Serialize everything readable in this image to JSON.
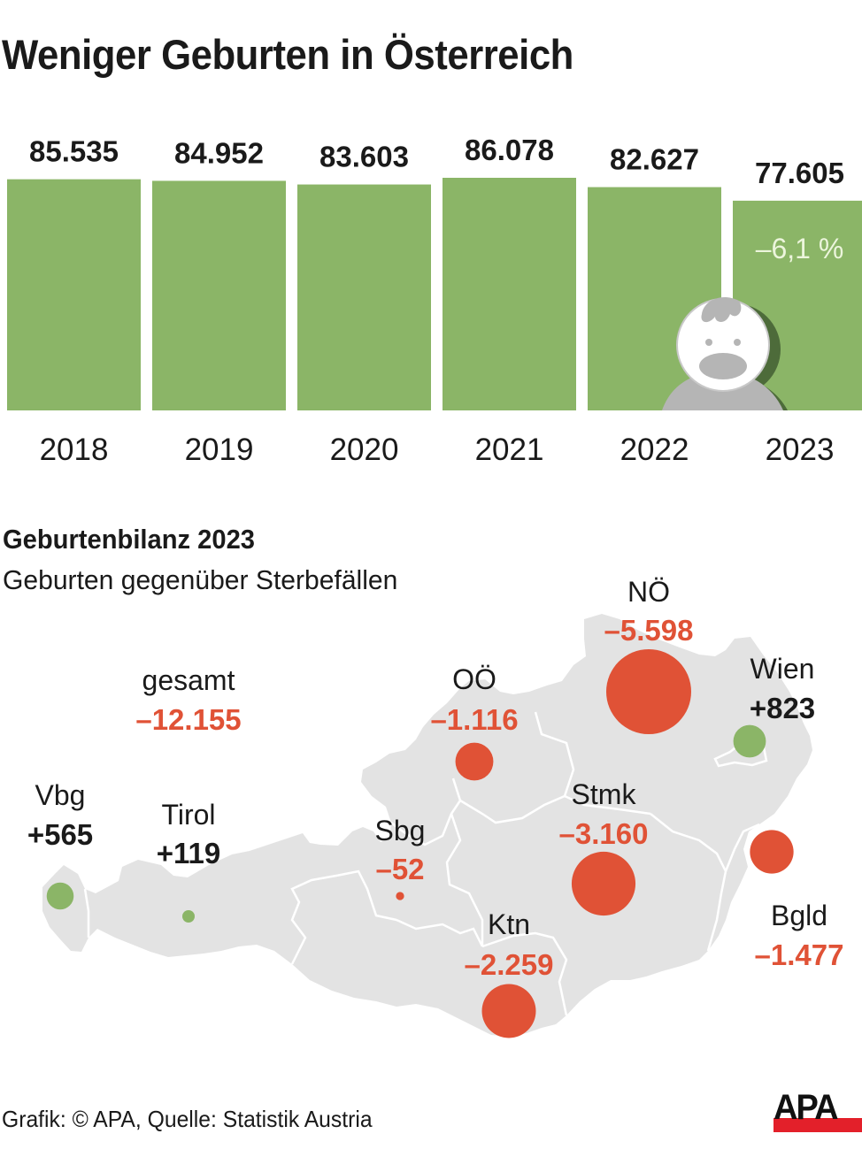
{
  "title": "Weniger Geburten in Österreich",
  "chart_data": [
    {
      "type": "bar",
      "title": "Weniger Geburten in Österreich",
      "categories": [
        "2018",
        "2019",
        "2020",
        "2021",
        "2022",
        "2023"
      ],
      "values": [
        85535,
        84952,
        83603,
        86078,
        82627,
        77605
      ],
      "value_labels": [
        "85.535",
        "84.952",
        "83.603",
        "86.078",
        "82.627",
        "77.605"
      ],
      "annotation": "–6,1 %",
      "annotation_category": "2023",
      "xlabel": "",
      "ylabel": "",
      "grid": false,
      "bar_color": "#8bb567",
      "icon": "baby-icon"
    },
    {
      "type": "map-bubble",
      "title": "Geburtenbilanz 2023",
      "subtitle": "Geburten gegenüber Sterbefällen",
      "total": {
        "label": "gesamt",
        "value": -12155,
        "display": "–12.155"
      },
      "regions": [
        {
          "name": "Vbg",
          "value": 565,
          "display": "+565"
        },
        {
          "name": "Tirol",
          "value": 119,
          "display": "+119"
        },
        {
          "name": "Sbg",
          "value": -52,
          "display": "–52"
        },
        {
          "name": "OÖ",
          "value": -1116,
          "display": "–1.116"
        },
        {
          "name": "NÖ",
          "value": -5598,
          "display": "–5.598"
        },
        {
          "name": "Wien",
          "value": 823,
          "display": "+823"
        },
        {
          "name": "Stmk",
          "value": -3160,
          "display": "–3.160"
        },
        {
          "name": "Ktn",
          "value": -2259,
          "display": "–2.259"
        },
        {
          "name": "Bgld",
          "value": -1477,
          "display": "–1.477"
        }
      ],
      "positive_color": "#8bb567",
      "negative_color": "#e05236",
      "map_color": "#e3e3e3"
    }
  ],
  "footer": {
    "credit": "Grafik: © APA, Quelle: Statistik Austria",
    "logo_text": "APA"
  },
  "colors": {
    "bar": "#8bb567",
    "negative": "#e05236",
    "positive_text": "#1a1a1a",
    "map": "#e3e3e3",
    "logo_red": "#e3202a"
  }
}
